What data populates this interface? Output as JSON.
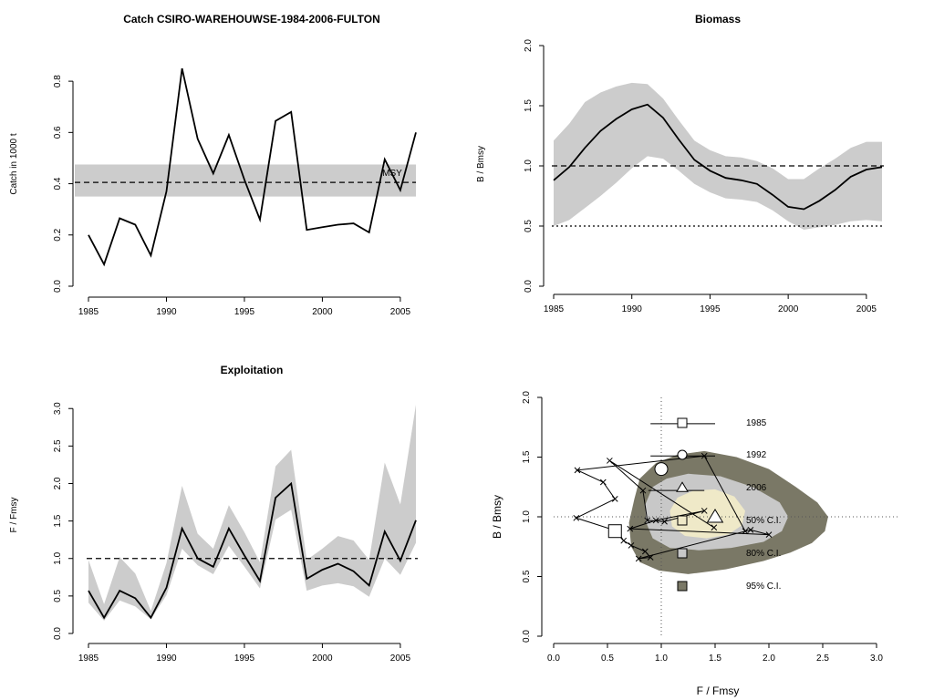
{
  "chart_data": [
    {
      "type": "line",
      "title": "Catch CSIRO-WAREHOUWSE-1984-2006-FULTON",
      "xlabel": "",
      "ylabel": "Catch in 1000 t",
      "xlim": [
        1985,
        2006
      ],
      "ylim": [
        0,
        0.9
      ],
      "x_ticks": [
        1985,
        1990,
        1995,
        2000,
        2005
      ],
      "y_ticks": [
        0.0,
        0.2,
        0.4,
        0.6,
        0.8
      ],
      "x": [
        1985,
        1986,
        1987,
        1988,
        1989,
        1990,
        1991,
        1992,
        1993,
        1994,
        1995,
        1996,
        1997,
        1998,
        1999,
        2000,
        2001,
        2002,
        2003,
        2004,
        2005,
        2006
      ],
      "series": [
        {
          "values": [
            0.2,
            0.085,
            0.265,
            0.24,
            0.12,
            0.37,
            0.85,
            0.575,
            0.44,
            0.59,
            0.415,
            0.26,
            0.645,
            0.68,
            0.22,
            0.23,
            0.24,
            0.245,
            0.21,
            0.495,
            0.375,
            0.6
          ]
        }
      ],
      "reference_line": {
        "label": "MSY",
        "value": 0.405,
        "band": [
          0.35,
          0.475
        ]
      }
    },
    {
      "type": "line",
      "title": "Biomass",
      "xlabel": "",
      "ylabel": "B / Bmsy",
      "xlim": [
        1985,
        2006
      ],
      "ylim": [
        0,
        2.0
      ],
      "x_ticks": [
        1985,
        1990,
        1995,
        2000,
        2005
      ],
      "y_ticks": [
        0.0,
        0.5,
        1.0,
        1.5,
        2.0
      ],
      "x": [
        1985,
        1986,
        1987,
        1988,
        1989,
        1990,
        1991,
        1992,
        1993,
        1994,
        1995,
        1996,
        1997,
        1998,
        1999,
        2000,
        2001,
        2002,
        2003,
        2004,
        2005,
        2006
      ],
      "series": [
        {
          "values": [
            0.88,
            0.99,
            1.15,
            1.29,
            1.39,
            1.47,
            1.51,
            1.4,
            1.22,
            1.05,
            0.96,
            0.9,
            0.88,
            0.85,
            0.76,
            0.66,
            0.64,
            0.71,
            0.8,
            0.91,
            0.97,
            0.99
          ],
          "lower": [
            0.5,
            0.55,
            0.65,
            0.75,
            0.86,
            0.98,
            1.08,
            1.06,
            0.96,
            0.85,
            0.78,
            0.73,
            0.72,
            0.7,
            0.63,
            0.54,
            0.47,
            0.49,
            0.51,
            0.54,
            0.55,
            0.54
          ],
          "upper": [
            1.21,
            1.35,
            1.53,
            1.61,
            1.66,
            1.69,
            1.68,
            1.56,
            1.38,
            1.21,
            1.13,
            1.08,
            1.07,
            1.04,
            0.98,
            0.89,
            0.89,
            0.98,
            1.06,
            1.15,
            1.2,
            1.2
          ]
        }
      ],
      "reference_lines": [
        1.0,
        0.5
      ]
    },
    {
      "type": "line",
      "title": "Exploitation",
      "xlabel": "",
      "ylabel": "F / Fmsy",
      "xlim": [
        1985,
        2006
      ],
      "ylim": [
        0,
        3.1
      ],
      "x_ticks": [
        1985,
        1990,
        1995,
        2000,
        2005
      ],
      "y_ticks": [
        0.0,
        0.5,
        1.0,
        1.5,
        2.0,
        2.5,
        3.0
      ],
      "x": [
        1985,
        1986,
        1987,
        1988,
        1989,
        1990,
        1991,
        1992,
        1993,
        1994,
        1995,
        1996,
        1997,
        1998,
        1999,
        2000,
        2001,
        2002,
        2003,
        2004,
        2005,
        2006
      ],
      "series": [
        {
          "values": [
            0.57,
            0.21,
            0.57,
            0.47,
            0.21,
            0.61,
            1.4,
            1.0,
            0.89,
            1.4,
            1.04,
            0.7,
            1.81,
            2.0,
            0.73,
            0.85,
            0.93,
            0.83,
            0.64,
            1.36,
            0.97,
            1.51
          ],
          "lower": [
            0.41,
            0.17,
            0.44,
            0.36,
            0.19,
            0.51,
            1.13,
            0.91,
            0.79,
            1.17,
            0.89,
            0.6,
            1.52,
            1.65,
            0.57,
            0.64,
            0.67,
            0.63,
            0.49,
            1.0,
            0.78,
            1.21
          ],
          "upper": [
            0.98,
            0.39,
            1.02,
            0.8,
            0.3,
            0.94,
            1.97,
            1.33,
            1.13,
            1.71,
            1.35,
            0.95,
            2.23,
            2.45,
            0.98,
            1.13,
            1.3,
            1.24,
            0.98,
            2.28,
            1.72,
            3.05
          ]
        }
      ],
      "reference_lines": [
        1.0
      ]
    },
    {
      "type": "scatter",
      "title": "",
      "xlabel": "F / Fmsy",
      "ylabel": "B / Bmsy",
      "xlim": [
        0,
        3.0
      ],
      "ylim": [
        0,
        2.0
      ],
      "x_ticks": [
        0.0,
        0.5,
        1.0,
        1.5,
        2.0,
        2.5,
        3.0
      ],
      "y_ticks": [
        0.0,
        0.5,
        1.0,
        1.5,
        2.0
      ],
      "reference_lines": {
        "x": 1.0,
        "y": 1.0
      },
      "trajectory": [
        [
          1.78,
          0.88
        ],
        [
          1.4,
          1.51
        ],
        [
          0.22,
          1.39
        ],
        [
          0.46,
          1.29
        ],
        [
          0.57,
          1.15
        ],
        [
          0.21,
          0.99
        ],
        [
          0.59,
          0.88
        ],
        [
          0.65,
          0.8
        ],
        [
          0.72,
          0.76
        ],
        [
          0.85,
          0.71
        ],
        [
          0.9,
          0.66
        ],
        [
          0.79,
          0.65
        ],
        [
          1.83,
          0.89
        ],
        [
          2.0,
          0.85
        ],
        [
          0.71,
          0.9
        ],
        [
          0.95,
          0.97
        ],
        [
          1.4,
          1.05
        ],
        [
          1.03,
          0.96
        ],
        [
          0.87,
          0.97
        ],
        [
          0.83,
          1.22
        ],
        [
          0.52,
          1.47
        ],
        [
          1.49,
          0.91
        ]
      ],
      "markers": [
        {
          "shape": "square",
          "x": 0.57,
          "y": 0.88
        },
        {
          "shape": "circle",
          "x": 1.0,
          "y": 1.4
        },
        {
          "shape": "triangle",
          "x": 1.5,
          "y": 1.0
        }
      ],
      "error_bars": [
        {
          "y": 1.78,
          "x1": 0.9,
          "x2": 1.5
        },
        {
          "y": 1.51,
          "x1": 0.9,
          "x2": 1.5
        },
        {
          "y": 1.22,
          "x1": 0.88,
          "x2": 1.4
        }
      ],
      "confidence_regions": [
        "50% C.I.",
        "80% C.I.",
        "95% C.I."
      ],
      "legend": [
        {
          "shape": "square",
          "label": "1985",
          "fill": "#ffffff"
        },
        {
          "shape": "circle",
          "label": "1992",
          "fill": "#ffffff"
        },
        {
          "shape": "triangle",
          "label": "2006",
          "fill": "#ffffff"
        },
        {
          "shape": "square",
          "label": "50% C.I.",
          "fill": "#efe9c8"
        },
        {
          "shape": "square",
          "label": "80% C.I.",
          "fill": "#c8c8c8"
        },
        {
          "shape": "square",
          "label": "95% C.I.",
          "fill": "#7a7866"
        }
      ]
    }
  ],
  "colors": {
    "band": "#cccccc",
    "ci50": "#efe9c8",
    "ci80": "#c8c8c8",
    "ci95": "#7a7866",
    "line": "#000000"
  }
}
